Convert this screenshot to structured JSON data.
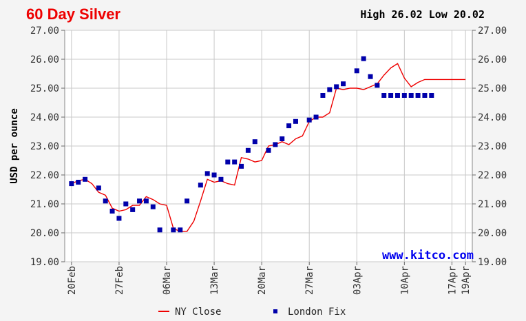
{
  "chart_data": {
    "type": "line",
    "title": "60 Day Silver",
    "high_low_text": "High 26.02 Low 20.02",
    "ylabel": "USD per ounce",
    "watermark": "www.kitco.com",
    "ylim": [
      19.0,
      27.0
    ],
    "y_ticks": [
      "19.00",
      "20.00",
      "21.00",
      "22.00",
      "23.00",
      "24.00",
      "25.00",
      "26.00",
      "27.00"
    ],
    "x_tick_labels": [
      "20Feb",
      "27Feb",
      "06Mar",
      "13Mar",
      "20Mar",
      "27Mar",
      "03Apr",
      "10Apr",
      "17Apr",
      "19Apr"
    ],
    "x_tick_days": [
      0,
      7,
      14,
      21,
      28,
      35,
      42,
      49,
      56,
      58
    ],
    "x_range_days": [
      -1,
      59
    ],
    "grid": true,
    "legend_position": "bottom",
    "colors": {
      "ny_close": "#ee0000",
      "london_fix": "#0000aa",
      "title": "#ee0000",
      "watermark": "#0000ee"
    },
    "series": [
      {
        "name": "NY Close",
        "style": "line",
        "x": [
          0,
          1,
          2,
          3,
          4,
          5,
          6,
          7,
          8,
          9,
          10,
          11,
          12,
          13,
          14,
          15,
          16,
          17,
          18,
          19,
          20,
          21,
          22,
          23,
          24,
          25,
          26,
          27,
          28,
          29,
          30,
          31,
          32,
          33,
          34,
          35,
          36,
          37,
          38,
          39,
          40,
          41,
          42,
          43,
          44,
          45,
          46,
          47,
          48,
          49,
          50,
          51,
          52,
          53,
          54,
          55,
          56,
          57,
          58
        ],
        "y": [
          21.7,
          21.8,
          21.85,
          21.7,
          21.4,
          21.3,
          20.85,
          20.75,
          20.8,
          20.95,
          20.95,
          21.25,
          21.15,
          21.0,
          20.95,
          20.15,
          20.05,
          20.05,
          20.4,
          21.1,
          21.85,
          21.75,
          21.8,
          21.7,
          21.65,
          22.6,
          22.55,
          22.45,
          22.5,
          23.0,
          23.05,
          23.15,
          23.05,
          23.25,
          23.35,
          23.85,
          24.0,
          24.0,
          24.15,
          25.0,
          24.95,
          25.0,
          25.0,
          24.95,
          25.05,
          25.15,
          25.45,
          25.7,
          25.85,
          25.35,
          25.05,
          25.2,
          25.3,
          25.3,
          25.3,
          25.3,
          25.3,
          25.3,
          25.3
        ]
      },
      {
        "name": "London Fix",
        "style": "markers",
        "x": [
          0,
          1,
          2,
          4,
          5,
          6,
          7,
          8,
          9,
          10,
          11,
          12,
          13,
          15,
          16,
          17,
          19,
          20,
          21,
          22,
          23,
          24,
          25,
          26,
          27,
          29,
          30,
          31,
          32,
          33,
          35,
          36,
          37,
          38,
          39,
          40,
          42,
          43,
          44,
          45,
          46,
          47,
          48,
          49,
          50,
          51,
          52,
          53
        ],
        "y": [
          21.7,
          21.75,
          21.85,
          21.55,
          21.1,
          20.75,
          20.5,
          21.0,
          20.8,
          21.1,
          21.1,
          20.9,
          20.1,
          20.1,
          20.1,
          21.1,
          21.65,
          22.05,
          22.0,
          21.85,
          22.45,
          22.45,
          22.3,
          22.85,
          23.15,
          22.85,
          23.05,
          23.25,
          23.7,
          23.85,
          23.9,
          24.0,
          24.75,
          24.95,
          25.05,
          25.15,
          25.6,
          26.02,
          25.4,
          25.1,
          24.75,
          24.75,
          24.75,
          24.75,
          24.75,
          24.75,
          24.75,
          24.75
        ]
      }
    ]
  }
}
